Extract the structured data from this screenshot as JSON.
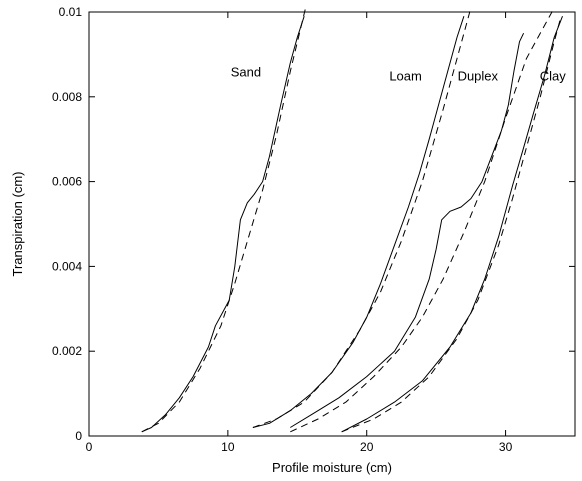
{
  "chart_data": {
    "type": "line",
    "title": "",
    "xlabel": "Profile moisture (cm)",
    "ylabel": "Transpiration (cm)",
    "xlim": [
      0,
      35
    ],
    "ylim": [
      0,
      0.01
    ],
    "x_ticks": [
      0,
      10,
      20,
      30
    ],
    "y_ticks": [
      0,
      0.002,
      0.004,
      0.006,
      0.008,
      0.01
    ],
    "x_tick_labels": [
      "0",
      "10",
      "20",
      "30"
    ],
    "y_tick_labels": [
      "0",
      "0.002",
      "0.004",
      "0.006",
      "0.008",
      "0.01"
    ],
    "grid": false,
    "series": [
      {
        "name": "Sand",
        "kind": "observed",
        "label_at": [
          11.3,
          0.0086
        ],
        "points": [
          [
            3.8,
            0.0001
          ],
          [
            4.5,
            0.0002
          ],
          [
            5.5,
            0.0005
          ],
          [
            6.5,
            0.0009
          ],
          [
            7.5,
            0.0014
          ],
          [
            8.6,
            0.0021
          ],
          [
            9.1,
            0.0026
          ],
          [
            9.6,
            0.0029
          ],
          [
            10.1,
            0.0032
          ],
          [
            10.5,
            0.004
          ],
          [
            10.9,
            0.0051
          ],
          [
            11.4,
            0.0055
          ],
          [
            11.9,
            0.0057
          ],
          [
            12.5,
            0.006
          ],
          [
            13.0,
            0.0066
          ],
          [
            13.8,
            0.0078
          ],
          [
            14.5,
            0.0088
          ],
          [
            15.0,
            0.0094
          ],
          [
            15.5,
            0.0099
          ]
        ]
      },
      {
        "name": "Sand",
        "kind": "fitted",
        "points": [
          [
            3.8,
            0.0001
          ],
          [
            5.0,
            0.0003
          ],
          [
            6.5,
            0.0008
          ],
          [
            8.0,
            0.0016
          ],
          [
            9.5,
            0.0026
          ],
          [
            10.5,
            0.0036
          ],
          [
            11.5,
            0.0047
          ],
          [
            12.5,
            0.0058
          ],
          [
            13.5,
            0.0071
          ],
          [
            14.5,
            0.0086
          ],
          [
            15.6,
            0.0101
          ]
        ]
      },
      {
        "name": "Loam",
        "kind": "observed",
        "label_at": [
          22.8,
          0.0085
        ],
        "points": [
          [
            11.8,
            0.0002
          ],
          [
            13.0,
            0.0003
          ],
          [
            14.5,
            0.0006
          ],
          [
            16.0,
            0.001
          ],
          [
            17.5,
            0.0015
          ],
          [
            19.0,
            0.0022
          ],
          [
            20.0,
            0.0028
          ],
          [
            21.0,
            0.0036
          ],
          [
            22.0,
            0.0045
          ],
          [
            23.0,
            0.0054
          ],
          [
            23.8,
            0.0062
          ],
          [
            24.5,
            0.007
          ],
          [
            25.5,
            0.0082
          ],
          [
            26.5,
            0.0094
          ],
          [
            27.0,
            0.0099
          ]
        ]
      },
      {
        "name": "Loam",
        "kind": "fitted",
        "points": [
          [
            11.8,
            0.0002
          ],
          [
            13.5,
            0.0004
          ],
          [
            15.5,
            0.0008
          ],
          [
            17.5,
            0.0015
          ],
          [
            19.5,
            0.0025
          ],
          [
            21.0,
            0.0034
          ],
          [
            22.5,
            0.0046
          ],
          [
            24.0,
            0.006
          ],
          [
            25.5,
            0.0077
          ],
          [
            27.5,
            0.0101
          ]
        ]
      },
      {
        "name": "Duplex",
        "kind": "observed",
        "label_at": [
          28.0,
          0.0085
        ],
        "points": [
          [
            14.5,
            0.0002
          ],
          [
            16.0,
            0.0005
          ],
          [
            18.0,
            0.0009
          ],
          [
            20.0,
            0.0014
          ],
          [
            22.0,
            0.002
          ],
          [
            23.5,
            0.0028
          ],
          [
            24.5,
            0.0037
          ],
          [
            25.0,
            0.0044
          ],
          [
            25.4,
            0.0051
          ],
          [
            26.0,
            0.0053
          ],
          [
            26.8,
            0.0054
          ],
          [
            27.5,
            0.0056
          ],
          [
            28.3,
            0.006
          ],
          [
            29.0,
            0.0066
          ],
          [
            29.7,
            0.0072
          ],
          [
            30.2,
            0.0078
          ],
          [
            30.6,
            0.0086
          ],
          [
            31.0,
            0.0093
          ],
          [
            31.3,
            0.0095
          ]
        ]
      },
      {
        "name": "Duplex",
        "kind": "fitted",
        "points": [
          [
            14.5,
            0.0001
          ],
          [
            16.5,
            0.0004
          ],
          [
            18.5,
            0.0008
          ],
          [
            20.5,
            0.0014
          ],
          [
            22.5,
            0.0021
          ],
          [
            24.0,
            0.0028
          ],
          [
            25.5,
            0.0037
          ],
          [
            27.0,
            0.0048
          ],
          [
            28.5,
            0.006
          ],
          [
            30.0,
            0.0075
          ],
          [
            31.5,
            0.0089
          ],
          [
            33.5,
            0.0101
          ]
        ]
      },
      {
        "name": "Clay",
        "kind": "observed",
        "label_at": [
          33.4,
          0.0085
        ],
        "points": [
          [
            18.2,
            0.0001
          ],
          [
            20.0,
            0.0004
          ],
          [
            22.0,
            0.0008
          ],
          [
            24.0,
            0.0013
          ],
          [
            26.0,
            0.0021
          ],
          [
            27.5,
            0.0029
          ],
          [
            28.5,
            0.0037
          ],
          [
            29.5,
            0.0047
          ],
          [
            30.5,
            0.0059
          ],
          [
            31.3,
            0.0068
          ],
          [
            32.0,
            0.0076
          ],
          [
            32.8,
            0.0085
          ],
          [
            33.5,
            0.0094
          ],
          [
            34.1,
            0.0099
          ]
        ]
      },
      {
        "name": "Clay",
        "kind": "fitted",
        "points": [
          [
            18.2,
            0.0001
          ],
          [
            20.5,
            0.0004
          ],
          [
            22.5,
            0.0008
          ],
          [
            24.5,
            0.0014
          ],
          [
            26.5,
            0.0023
          ],
          [
            28.0,
            0.0032
          ],
          [
            29.5,
            0.0045
          ],
          [
            30.5,
            0.0056
          ],
          [
            31.5,
            0.0068
          ],
          [
            32.5,
            0.008
          ],
          [
            33.5,
            0.0093
          ],
          [
            34.0,
            0.0099
          ]
        ]
      }
    ]
  }
}
